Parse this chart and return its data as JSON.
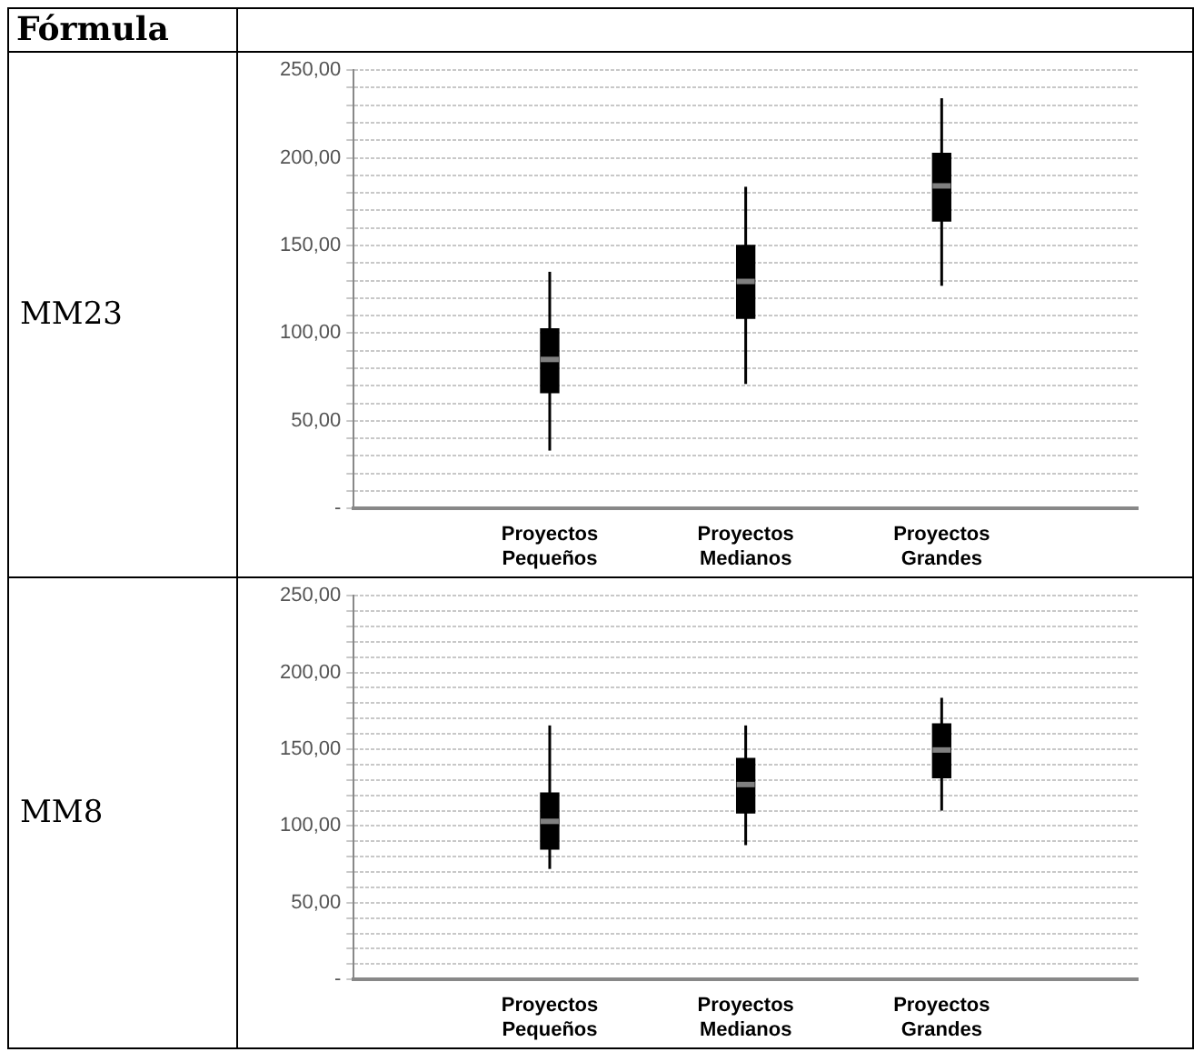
{
  "chart_data": [
    {
      "type": "box",
      "title": "MM23",
      "annotations": [
        "Fórmula"
      ],
      "categories": [
        "Proyectos Pequeños",
        "Proyectos Medianos",
        "Proyectos Grandes"
      ],
      "color": "#000000",
      "boxes": [
        {
          "low": 33,
          "q1": 66,
          "median": 85,
          "q3": 102.5,
          "high": 135
        },
        {
          "low": 71,
          "q1": 108.5,
          "median": 129.5,
          "q3": 150,
          "high": 183.5
        },
        {
          "low": 127,
          "q1": 164,
          "median": 184,
          "q3": 202.5,
          "high": 234
        }
      ],
      "ylim": [
        0,
        250
      ],
      "yticks": [
        {
          "value": 0,
          "label": "-"
        },
        {
          "value": 10,
          "label": null
        },
        {
          "value": 20,
          "label": null
        },
        {
          "value": 30,
          "label": null
        },
        {
          "value": 40,
          "label": null
        },
        {
          "value": 50,
          "label": "50,00"
        },
        {
          "value": 60,
          "label": null
        },
        {
          "value": 70,
          "label": null
        },
        {
          "value": 80,
          "label": null
        },
        {
          "value": 90,
          "label": null
        },
        {
          "value": 100,
          "label": "100,00"
        },
        {
          "value": 110,
          "label": null
        },
        {
          "value": 120,
          "label": null
        },
        {
          "value": 130,
          "label": null
        },
        {
          "value": 140,
          "label": null
        },
        {
          "value": 150,
          "label": "150,00"
        },
        {
          "value": 160,
          "label": null
        },
        {
          "value": 170,
          "label": null
        },
        {
          "value": 180,
          "label": null
        },
        {
          "value": 190,
          "label": null
        },
        {
          "value": 200,
          "label": "200,00"
        },
        {
          "value": 210,
          "label": null
        },
        {
          "value": 220,
          "label": null
        },
        {
          "value": 230,
          "label": null
        },
        {
          "value": 240,
          "label": null
        },
        {
          "value": 250,
          "label": "250,00"
        }
      ],
      "grid": "y"
    },
    {
      "type": "box",
      "title": "MM8",
      "categories": [
        "Proyectos Pequeños",
        "Proyectos Medianos",
        "Proyectos Grandes"
      ],
      "color": "#000000",
      "boxes": [
        {
          "low": 72,
          "q1": 85,
          "median": 103,
          "q3": 121.5,
          "high": 165.5
        },
        {
          "low": 87.5,
          "q1": 108.5,
          "median": 127,
          "q3": 144,
          "high": 165.5
        },
        {
          "low": 110,
          "q1": 131.5,
          "median": 149.5,
          "q3": 166.5,
          "high": 183.5
        }
      ],
      "ylim": [
        0,
        250
      ],
      "yticks": [
        {
          "value": 0,
          "label": "-"
        },
        {
          "value": 10,
          "label": null
        },
        {
          "value": 20,
          "label": null
        },
        {
          "value": 30,
          "label": null
        },
        {
          "value": 40,
          "label": null
        },
        {
          "value": 50,
          "label": "50,00"
        },
        {
          "value": 60,
          "label": null
        },
        {
          "value": 70,
          "label": null
        },
        {
          "value": 80,
          "label": null
        },
        {
          "value": 90,
          "label": null
        },
        {
          "value": 100,
          "label": "100,00"
        },
        {
          "value": 110,
          "label": null
        },
        {
          "value": 120,
          "label": null
        },
        {
          "value": 130,
          "label": null
        },
        {
          "value": 140,
          "label": null
        },
        {
          "value": 150,
          "label": "150,00"
        },
        {
          "value": 160,
          "label": null
        },
        {
          "value": 170,
          "label": null
        },
        {
          "value": 180,
          "label": null
        },
        {
          "value": 190,
          "label": null
        },
        {
          "value": 200,
          "label": "200,00"
        },
        {
          "value": 210,
          "label": null
        },
        {
          "value": 220,
          "label": null
        },
        {
          "value": 230,
          "label": null
        },
        {
          "value": 240,
          "label": null
        },
        {
          "value": 250,
          "label": "250,00"
        }
      ],
      "grid": "y"
    }
  ]
}
